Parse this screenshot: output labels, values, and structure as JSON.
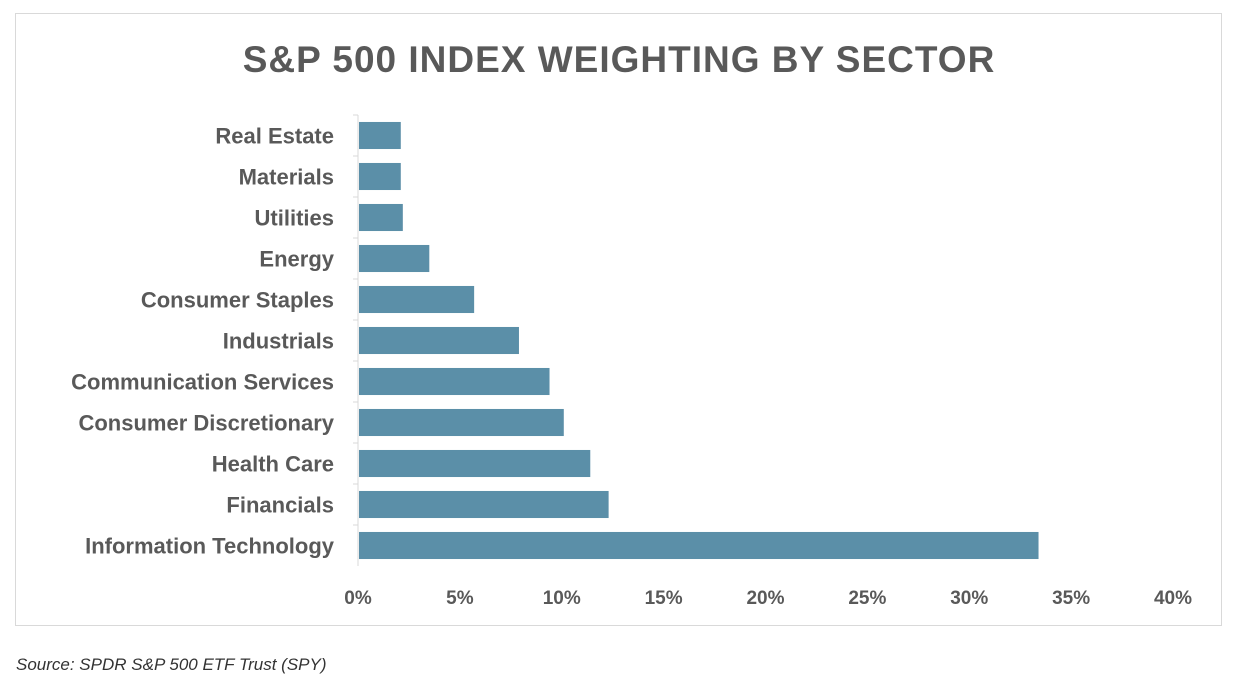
{
  "colors": {
    "bar": "#5b8fa8",
    "text": "#595959",
    "axis": "#d9d9d9"
  },
  "source_note": "Source: SPDR S&P 500 ETF Trust (SPY)",
  "chart_data": {
    "type": "bar",
    "orientation": "horizontal",
    "title": "S&P 500 INDEX WEIGHTING BY SECTOR",
    "categories": [
      "Real Estate",
      "Materials",
      "Utilities",
      "Energy",
      "Consumer Staples",
      "Industrials",
      "Communication Services",
      "Consumer Discretionary",
      "Health Care",
      "Financials",
      "Information Technology"
    ],
    "values": [
      2.1,
      2.1,
      2.2,
      3.5,
      5.7,
      7.9,
      9.4,
      10.1,
      11.4,
      12.3,
      33.4
    ],
    "xlim": [
      0,
      40
    ],
    "xticks": [
      "0%",
      "5%",
      "10%",
      "15%",
      "20%",
      "25%",
      "30%",
      "35%",
      "40%"
    ],
    "grid": false,
    "legend": "none"
  }
}
